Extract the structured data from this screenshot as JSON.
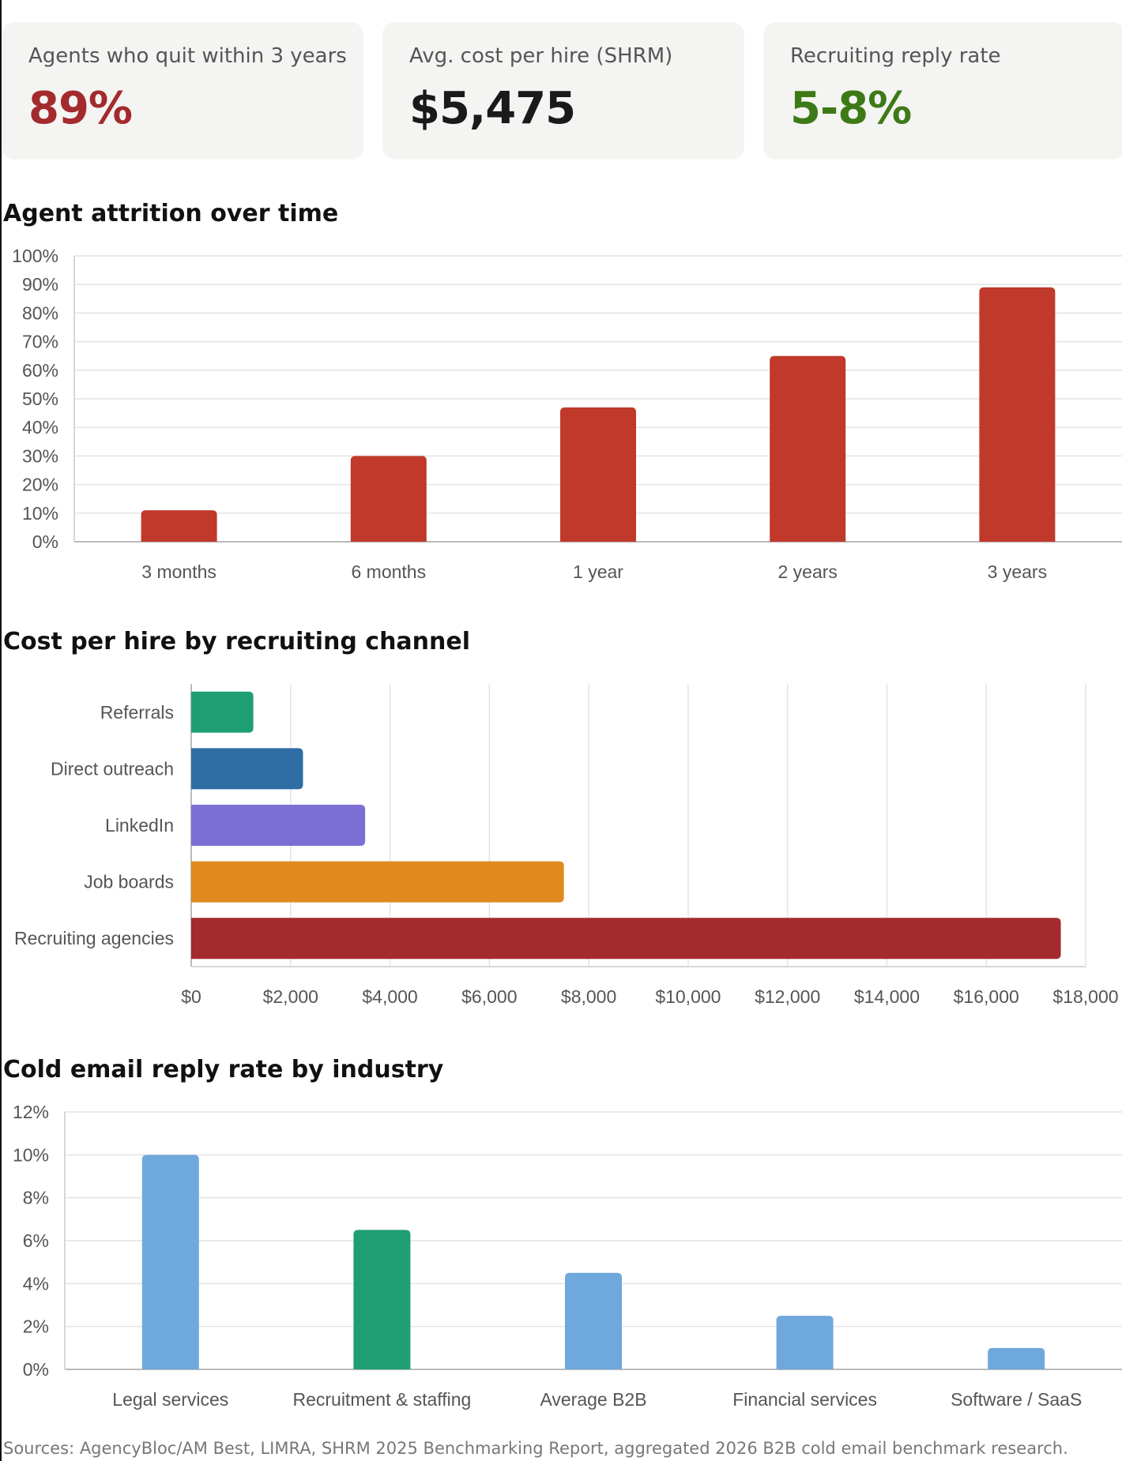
{
  "stats": [
    {
      "label": "Agents who quit within 3 years",
      "value": "89%",
      "color": "#a32a2d"
    },
    {
      "label": "Avg. cost per hire (SHRM)",
      "value": "$5,475",
      "color": "#1a1a1a"
    },
    {
      "label": "Recruiting reply rate",
      "value": "5-8%",
      "color": "#3d7a17"
    }
  ],
  "chart_data": [
    {
      "type": "bar",
      "orientation": "vertical",
      "title": "Agent attrition over time",
      "categories": [
        "3 months",
        "6 months",
        "1 year",
        "2 years",
        "3 years"
      ],
      "values": [
        11,
        30,
        47,
        65,
        89
      ],
      "colors": [
        "#c0392b",
        "#c0392b",
        "#c0392b",
        "#c0392b",
        "#c0392b"
      ],
      "ylim": [
        0,
        100
      ],
      "yticks": [
        "0%",
        "10%",
        "20%",
        "30%",
        "40%",
        "50%",
        "60%",
        "70%",
        "80%",
        "90%",
        "100%"
      ],
      "grid": true
    },
    {
      "type": "bar",
      "orientation": "horizontal",
      "title": "Cost per hire by recruiting channel",
      "categories": [
        "Referrals",
        "Direct outreach",
        "LinkedIn",
        "Job boards",
        "Recruiting agencies"
      ],
      "values": [
        1250,
        2250,
        3500,
        7500,
        17500
      ],
      "colors": [
        "#1f9e74",
        "#2e6da4",
        "#7b6fd4",
        "#e08a1e",
        "#a32a2d"
      ],
      "xlim": [
        0,
        18000
      ],
      "xticks": [
        "$0",
        "$2,000",
        "$4,000",
        "$6,000",
        "$8,000",
        "$10,000",
        "$12,000",
        "$14,000",
        "$16,000",
        "$18,000"
      ],
      "grid": true
    },
    {
      "type": "bar",
      "orientation": "vertical",
      "title": "Cold email reply rate by industry",
      "categories": [
        "Legal services",
        "Recruitment & staffing",
        "Average B2B",
        "Financial services",
        "Software / SaaS"
      ],
      "values": [
        10,
        6.5,
        4.5,
        2.5,
        1
      ],
      "colors": [
        "#6fa8dc",
        "#1f9e74",
        "#6fa8dc",
        "#6fa8dc",
        "#6fa8dc"
      ],
      "ylim": [
        0,
        12
      ],
      "yticks": [
        "0%",
        "2%",
        "4%",
        "6%",
        "8%",
        "10%",
        "12%"
      ],
      "grid": true
    }
  ],
  "source": "Sources: AgencyBloc/AM Best, LIMRA, SHRM 2025 Benchmarking Report, aggregated 2026 B2B cold email benchmark research."
}
